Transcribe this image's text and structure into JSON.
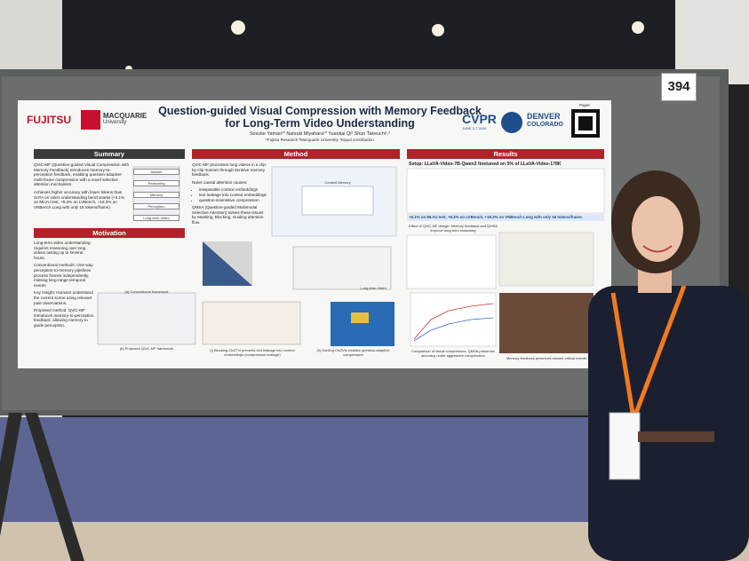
{
  "booth_number": "394",
  "poster": {
    "header": {
      "title": [
        "Question-guided Visual Compression with Memory Feedback",
        "for Long-Term Video Understanding"
      ],
      "authors": "Sosuke Yamao¹*   Natsuki Miyahara¹*   Yuankai Qi²   Shun Takeuchi¹,²",
      "affiliations": "¹Fujitsu Research   ²Macquarie University   *Equal contribution",
      "fujitsu": "FUJITSU",
      "macquarie": "MACQUARIE",
      "macquarie_sub": "University",
      "cvpr": "CVPR",
      "cvpr_date": "JUNE 3-7 2026",
      "denver": "DENVER",
      "colorado": "COLORADO",
      "paper": "Paper"
    },
    "summary": {
      "heading": "Summary",
      "paragraphs": [
        "QViC-MF (Question-guided Visual Compression with Memory Feedback) introduces memory-to-perception feedback, enabling question-adaptive multi-frame compression with a novel selective attention mechanism.",
        "Achieves higher accuracy with fewer tokens than SoTA on video understanding benchmarks (+6.1% on MLVU test, +8.3% on LVBench, +18.3% on VNBench Long with only 16 tokens/frame)."
      ],
      "diagram": [
        "Answer",
        "Reasoning",
        "Memory",
        "Perception",
        "Long-term Video"
      ]
    },
    "motivation": {
      "heading": "Motivation",
      "paragraphs": [
        "Long-term video understanding requires reasoning over long videos lasting up to several hours.",
        "Conventional methods: One-way perception-to-memory pipelines process frames independently, missing long-range temporal events",
        "Key Insight: Humans understand the current scene using relevant past observations.",
        "Proposed method: QViC-MF introduces memory-to-perception feedback, allowing memory to guide perception."
      ],
      "captions": [
        "(a) Conventional framework",
        "(b) Proposed QViC-MF framework"
      ]
    },
    "method": {
      "heading": "Method",
      "intro": "QViC-MF processes long videos in a clip-by-clip manner through iterative memory feedback.",
      "causes_title": "Naive causal attention causes:",
      "causes": [
        "inseparable context embeddings",
        "text leakage into context embeddings",
        "question-insensitive compression"
      ],
      "qmsa": "QMSA (Question-guided Multimodal Selective Attention) solves these issues by Masking, Blocking, Guiding attention flow.",
      "diagram": [
        "Context Memory",
        "Long-term Video"
      ],
      "captions": [
        "(i) Blocking Ctx2Txt prevents text leakage into context embeddings (compression leakage)",
        "(ii) Guiding Ctx2Vis enables question-adaptive compression"
      ]
    },
    "results": {
      "heading": "Results",
      "setup": "Setup: LLaVA-Video-7B-Qwen2 finetuned on 5% of LLaVA-Video-178K",
      "highlight": "+6.1% on MLVU test, +8.3% on LVBench, +18.3% on VNBench Long with only 16 tokens/frame.",
      "captions": [
        "Effect of QViC-MF design: Memory feedback and QMSA improve long-term reasoning",
        "Comparison of visual compressors. QMSA preserves accuracy under aggressive compression",
        "Memory feedback preserves answer-critical events"
      ]
    }
  }
}
